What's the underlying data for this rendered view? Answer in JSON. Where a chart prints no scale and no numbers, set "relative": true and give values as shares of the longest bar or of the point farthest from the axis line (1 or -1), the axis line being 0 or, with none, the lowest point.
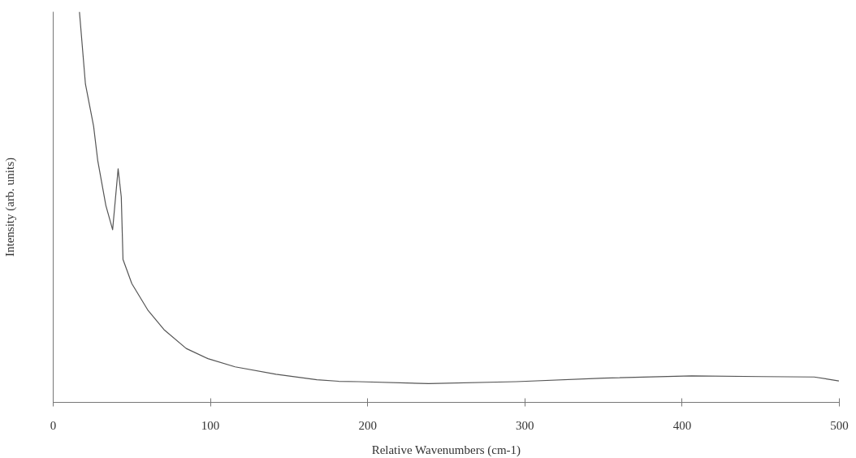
{
  "chart_data": {
    "type": "line",
    "relative": true,
    "xlabel": "Relative Wavenumbers (cm-1)",
    "ylabel": "Intensity (arb. units)",
    "xlim": [
      0,
      500
    ],
    "xticks": [
      0,
      100,
      200,
      300,
      400,
      500
    ],
    "series": [
      {
        "color": "#555555",
        "x": [
          16.7,
          20.5,
          25.7,
          28.3,
          33.5,
          37.8,
          41.3,
          43.3,
          44.4,
          50,
          60.4,
          70.8,
          84.6,
          98.4,
          115.7,
          141.7,
          167.7,
          181.6,
          194.2,
          238.8,
          294.5,
          350.3,
          406,
          450.6,
          484,
          499.7
        ],
        "values": [
          1.0,
          0.815,
          0.707,
          0.62,
          0.504,
          0.442,
          0.598,
          0.526,
          0.366,
          0.304,
          0.235,
          0.185,
          0.138,
          0.112,
          0.091,
          0.072,
          0.058,
          0.054,
          0.053,
          0.048,
          0.053,
          0.062,
          0.068,
          0.066,
          0.065,
          0.055
        ]
      }
    ],
    "grid": false
  }
}
